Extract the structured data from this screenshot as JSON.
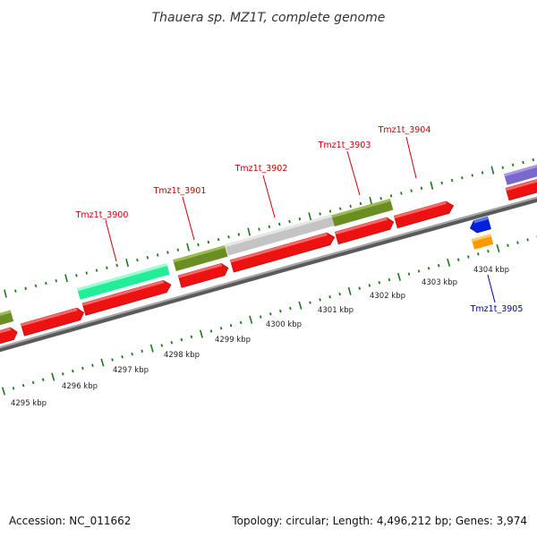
{
  "title": "Thauera sp. MZ1T, complete genome",
  "footer": {
    "accession": "Accession: NC_011662",
    "summary": "Topology: circular; Length: 4,496,212 bp; Genes: 3,974"
  },
  "scale": {
    "ticks": [
      {
        "label": "4295 kbp"
      },
      {
        "label": "4296 kbp"
      },
      {
        "label": "4297 kbp"
      },
      {
        "label": "4298 kbp"
      },
      {
        "label": "4299 kbp"
      },
      {
        "label": "4300 kbp"
      },
      {
        "label": "4301 kbp"
      },
      {
        "label": "4302 kbp"
      },
      {
        "label": "4303 kbp"
      },
      {
        "label": "4304 kbp"
      }
    ]
  },
  "gene_labels": [
    {
      "text": "Tmz1t_3900",
      "color": "#cc0000"
    },
    {
      "text": "Tmz1t_3901",
      "color": "#cc0000"
    },
    {
      "text": "Tmz1t_3902",
      "color": "#cc0000"
    },
    {
      "text": "Tmz1t_3903",
      "color": "#cc0000"
    },
    {
      "text": "Tmz1t_3904",
      "color": "#cc0000"
    },
    {
      "text": "Tmz1t_3905",
      "color": "#0000aa"
    }
  ],
  "colors": {
    "cds_forward": "#ee1111",
    "cds_reverse": "#0022dd",
    "backbone": "#8a8a8a",
    "tick_marks": "#1a7a1a",
    "category_green": "#6b8e23",
    "category_aqua": "#22ee99",
    "category_gray": "#c4c4c4",
    "category_purple": "#7b68cc",
    "category_orange": "#ff9900"
  }
}
